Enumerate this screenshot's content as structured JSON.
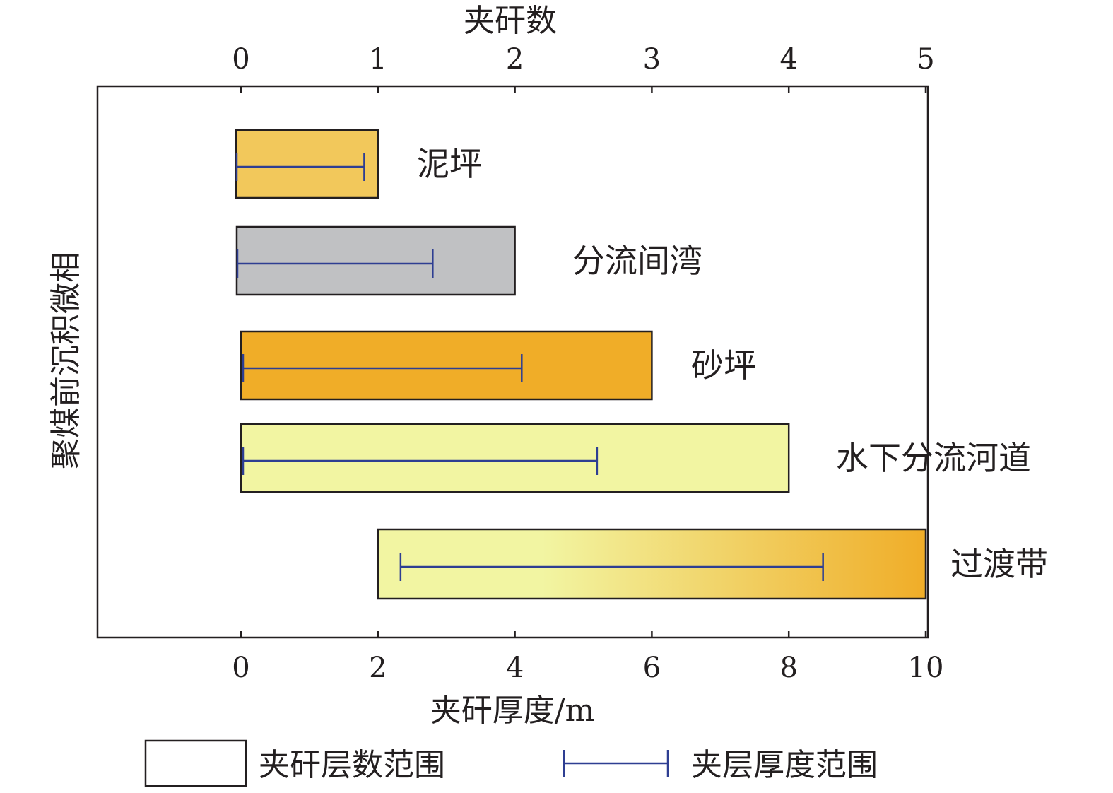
{
  "chart_data": {
    "type": "bar",
    "subtype": "horizontal-range-bar-with-errorbar",
    "top_axis": {
      "label": "夹矸数",
      "min": 0,
      "max": 5,
      "ticks": [
        "0",
        "1",
        "2",
        "3",
        "4",
        "5"
      ]
    },
    "bottom_axis": {
      "label": "夹矸厚度/m",
      "min": 0,
      "max": 10,
      "ticks": [
        "0",
        "2",
        "4",
        "6",
        "8",
        "10"
      ]
    },
    "y_axis": {
      "label": "聚煤前沉积微相"
    },
    "categories": [
      "泥坪",
      "分流间湾",
      "砂坪",
      "水下分流河道",
      "过渡带"
    ],
    "interlayer_count_range": [
      {
        "category": "泥坪",
        "min": 0,
        "max": 1,
        "color": "#f2c85b"
      },
      {
        "category": "分流间湾",
        "min": 0,
        "max": 2,
        "color": "#c0c1c3"
      },
      {
        "category": "砂坪",
        "min": 0,
        "max": 3,
        "color": "#f0ad28"
      },
      {
        "category": "水下分流河道",
        "min": 0,
        "max": 4,
        "color": "#f2f5a2"
      },
      {
        "category": "过渡带",
        "min": 1,
        "max": 5,
        "gradient": [
          "#f2f5a2",
          "#f2f5a2",
          "#f0ad28"
        ]
      }
    ],
    "thickness_range": [
      {
        "category": "泥坪",
        "min": 0,
        "max": 1.8
      },
      {
        "category": "分流间湾",
        "min": 0,
        "max": 2.8
      },
      {
        "category": "砂坪",
        "min": 0,
        "max": 4.1
      },
      {
        "category": "水下分流河道",
        "min": 0,
        "max": 5.2
      },
      {
        "category": "过渡带",
        "min": 2.3,
        "max": 8.5
      }
    ],
    "errorbar_color": "#2e3e92",
    "legend": {
      "position": "bottom",
      "items": [
        {
          "label": "夹矸层数范围",
          "kind": "box"
        },
        {
          "label": "夹层厚度范围",
          "kind": "errorbar"
        }
      ]
    },
    "grid": false
  }
}
